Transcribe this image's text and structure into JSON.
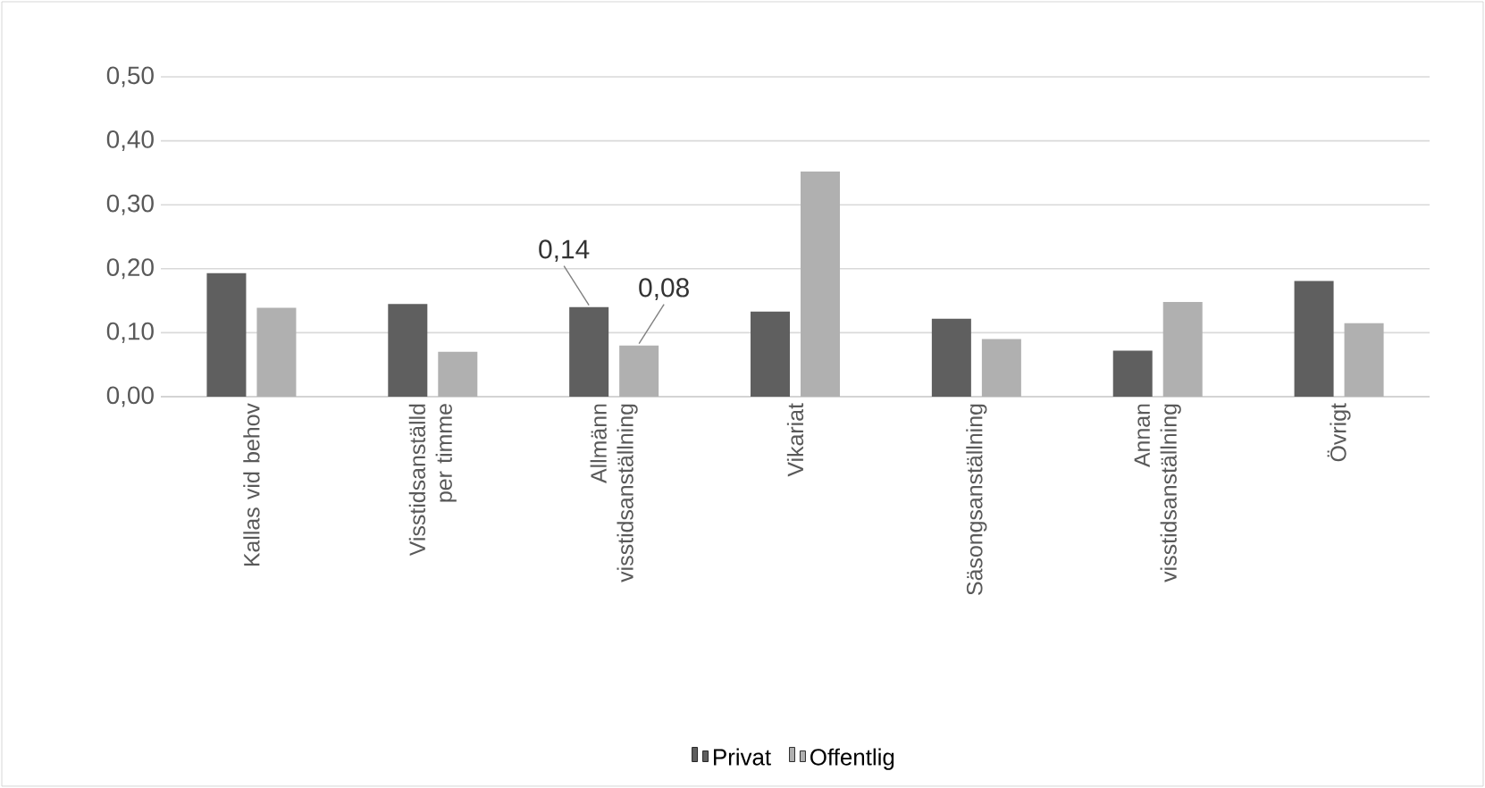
{
  "chart_data": {
    "type": "bar",
    "categories": [
      "Kallas vid behov",
      "Visstidsanställd per timme",
      "Allmänn visstidsanställning",
      "Vikariat",
      "Säsongsanställning",
      "Annan visstidsanställning",
      "Övrigt"
    ],
    "series": [
      {
        "name": "Privat",
        "color": "#5f5f5f",
        "values": [
          0.193,
          0.145,
          0.14,
          0.133,
          0.122,
          0.072,
          0.181
        ],
        "value_labels": [
          null,
          null,
          "0,14",
          null,
          null,
          null,
          null
        ]
      },
      {
        "name": "Offentlig",
        "color": "#b0b0b0",
        "values": [
          0.139,
          0.07,
          0.08,
          0.352,
          0.09,
          0.148,
          0.115
        ],
        "value_labels": [
          null,
          null,
          "0,08",
          null,
          null,
          null,
          null
        ]
      }
    ],
    "ylim": [
      0,
      0.5
    ],
    "yticks": [
      {
        "value": 0,
        "label": "0,00"
      },
      {
        "value": 0.1,
        "label": "0,10"
      },
      {
        "value": 0.2,
        "label": "0,20"
      },
      {
        "value": 0.3,
        "label": "0,30"
      },
      {
        "value": 0.4,
        "label": "0,40"
      },
      {
        "value": 0.5,
        "label": "0,50"
      }
    ],
    "grid": "y",
    "legend": "bottom"
  }
}
